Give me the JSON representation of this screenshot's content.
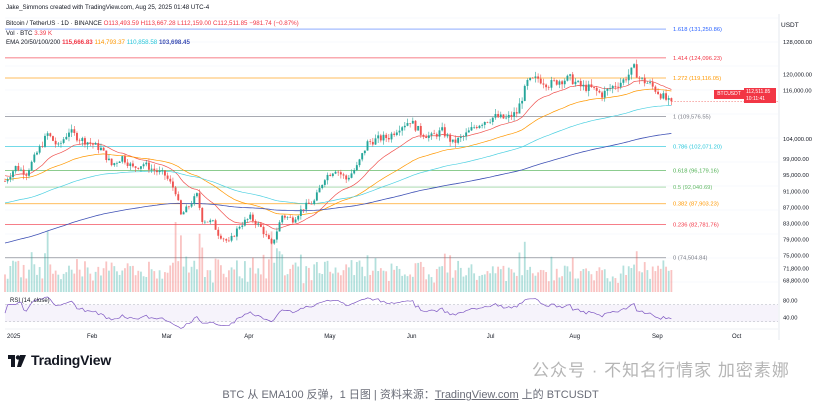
{
  "header": {
    "credit": "Jake_Simmons created with TradingView.com, Aug 25, 2025 01:48 UTC-4",
    "symbol_line_prefix": "Bitcoin / TetherUS · 1D · BINANCE",
    "ohlc": "O113,493.59 H113,667.28 L112,159.00 C112,511.85 −981.74 (−0.87%)",
    "vol_label": "Vol · BTC",
    "vol_value": "3.39 K",
    "ema_label": "EMA 20/50/100/200",
    "ema20": "115,666.83",
    "ema50": "114,793.37",
    "ema100": "110,858.58",
    "ema200": "103,698.45"
  },
  "price_axis": {
    "currency": "USDT",
    "ticks": [
      "128,000.00",
      "120,000.00",
      "116,000.00",
      "104,000.00",
      "99,000.00",
      "95,000.00",
      "91,000.00",
      "87,000.00",
      "83,000.00",
      "79,000.00",
      "75,000.00",
      "71,800.00",
      "68,800.00"
    ]
  },
  "current_price": {
    "symbol": "BTCUSDT",
    "price": "112,511.85",
    "countdown": "10:11:41"
  },
  "rsi": {
    "label": "RSI (14, close)",
    "ticks": [
      "80.00",
      "40.00"
    ]
  },
  "time_axis": {
    "labels": [
      "2025",
      "Feb",
      "Mar",
      "Apr",
      "May",
      "Jun",
      "Jul",
      "Aug",
      "Sep",
      "Oct"
    ]
  },
  "colors": {
    "up": "#26a69a",
    "down": "#ef5350",
    "ema20": "#ef5350",
    "ema50": "#ff9800",
    "ema100": "#4dd0e1",
    "ema200": "#3f51b5",
    "rsi": "#7e57c2"
  },
  "chart_data": {
    "type": "candlestick",
    "title": "Bitcoin / TetherUS · 1D · BINANCE",
    "ylim": [
      66000,
      134000
    ],
    "fibonacci": [
      {
        "label": "1.618 (131,250.86)",
        "value": 131250.86,
        "color": "#2962ff"
      },
      {
        "label": "1.414 (124,096.23)",
        "value": 124096.23,
        "color": "#f23645"
      },
      {
        "label": "1.272 (119,116.05)",
        "value": 119116.05,
        "color": "#ff9800"
      },
      {
        "label": "1 (109,576.55)",
        "value": 109576.55,
        "color": "#787b86"
      },
      {
        "label": "0.786 (102,071.20)",
        "value": 102071.2,
        "color": "#26c6da"
      },
      {
        "label": "0.618 (96,179.16)",
        "value": 96179.16,
        "color": "#4caf50"
      },
      {
        "label": "0.5 (92,040.69)",
        "value": 92040.69,
        "color": "#66bb6a"
      },
      {
        "label": "0.382 (87,903.23)",
        "value": 87903.23,
        "color": "#ff9800"
      },
      {
        "label": "0.236 (82,781.76)",
        "value": 82781.76,
        "color": "#f23645"
      },
      {
        "label": "0 (74,504.84)",
        "value": 74504.84,
        "color": "#787b86"
      }
    ],
    "close_path": [
      [
        0,
        93500
      ],
      [
        4,
        97000
      ],
      [
        8,
        95500
      ],
      [
        12,
        100500
      ],
      [
        16,
        105200
      ],
      [
        20,
        102000
      ],
      [
        24,
        106000
      ],
      [
        28,
        104000
      ],
      [
        32,
        103000
      ],
      [
        36,
        101500
      ],
      [
        40,
        97500
      ],
      [
        44,
        99500
      ],
      [
        48,
        96800
      ],
      [
        52,
        97800
      ],
      [
        56,
        96200
      ],
      [
        60,
        95000
      ],
      [
        64,
        91000
      ],
      [
        66,
        85000
      ],
      [
        68,
        86500
      ],
      [
        72,
        90000
      ],
      [
        74,
        84000
      ],
      [
        78,
        83200
      ],
      [
        80,
        80500
      ],
      [
        84,
        78200
      ],
      [
        88,
        82500
      ],
      [
        92,
        84500
      ],
      [
        96,
        82000
      ],
      [
        100,
        77500
      ],
      [
        104,
        85000
      ],
      [
        108,
        84000
      ],
      [
        112,
        87000
      ],
      [
        116,
        88500
      ],
      [
        120,
        94500
      ],
      [
        124,
        96500
      ],
      [
        128,
        94000
      ],
      [
        132,
        97000
      ],
      [
        136,
        103000
      ],
      [
        140,
        104000
      ],
      [
        144,
        104500
      ],
      [
        148,
        107000
      ],
      [
        152,
        108500
      ],
      [
        156,
        105500
      ],
      [
        160,
        104500
      ],
      [
        164,
        106000
      ],
      [
        168,
        103000
      ],
      [
        172,
        104500
      ],
      [
        176,
        107000
      ],
      [
        180,
        108500
      ],
      [
        184,
        109500
      ],
      [
        188,
        109000
      ],
      [
        192,
        110500
      ],
      [
        196,
        118000
      ],
      [
        200,
        119000
      ],
      [
        204,
        117500
      ],
      [
        208,
        118500
      ],
      [
        212,
        119000
      ],
      [
        216,
        117000
      ],
      [
        220,
        116500
      ],
      [
        224,
        115000
      ],
      [
        228,
        117000
      ],
      [
        232,
        118500
      ],
      [
        236,
        121500
      ],
      [
        238,
        119000
      ],
      [
        242,
        117500
      ],
      [
        246,
        115000
      ],
      [
        250,
        112500
      ]
    ],
    "months": [
      {
        "label": "2025",
        "day": 0
      },
      {
        "label": "Feb",
        "day": 30
      },
      {
        "label": "Mar",
        "day": 58
      },
      {
        "label": "Apr",
        "day": 89
      },
      {
        "label": "May",
        "day": 119
      },
      {
        "label": "Jun",
        "day": 150
      },
      {
        "label": "Jul",
        "day": 180
      },
      {
        "label": "Aug",
        "day": 211
      },
      {
        "label": "Sep",
        "day": 242
      },
      {
        "label": "Oct",
        "day": 272
      }
    ]
  },
  "branding": {
    "logo_text": "TradingView",
    "watermark": "公众号 · 不知名行情家 加密素娜"
  },
  "caption": {
    "prefix": "BTC 从 EMA100 反弹，1 日图 | 资料来源：",
    "link": "TradingView.com",
    "suffix": " 上的 BTCUSDT"
  }
}
